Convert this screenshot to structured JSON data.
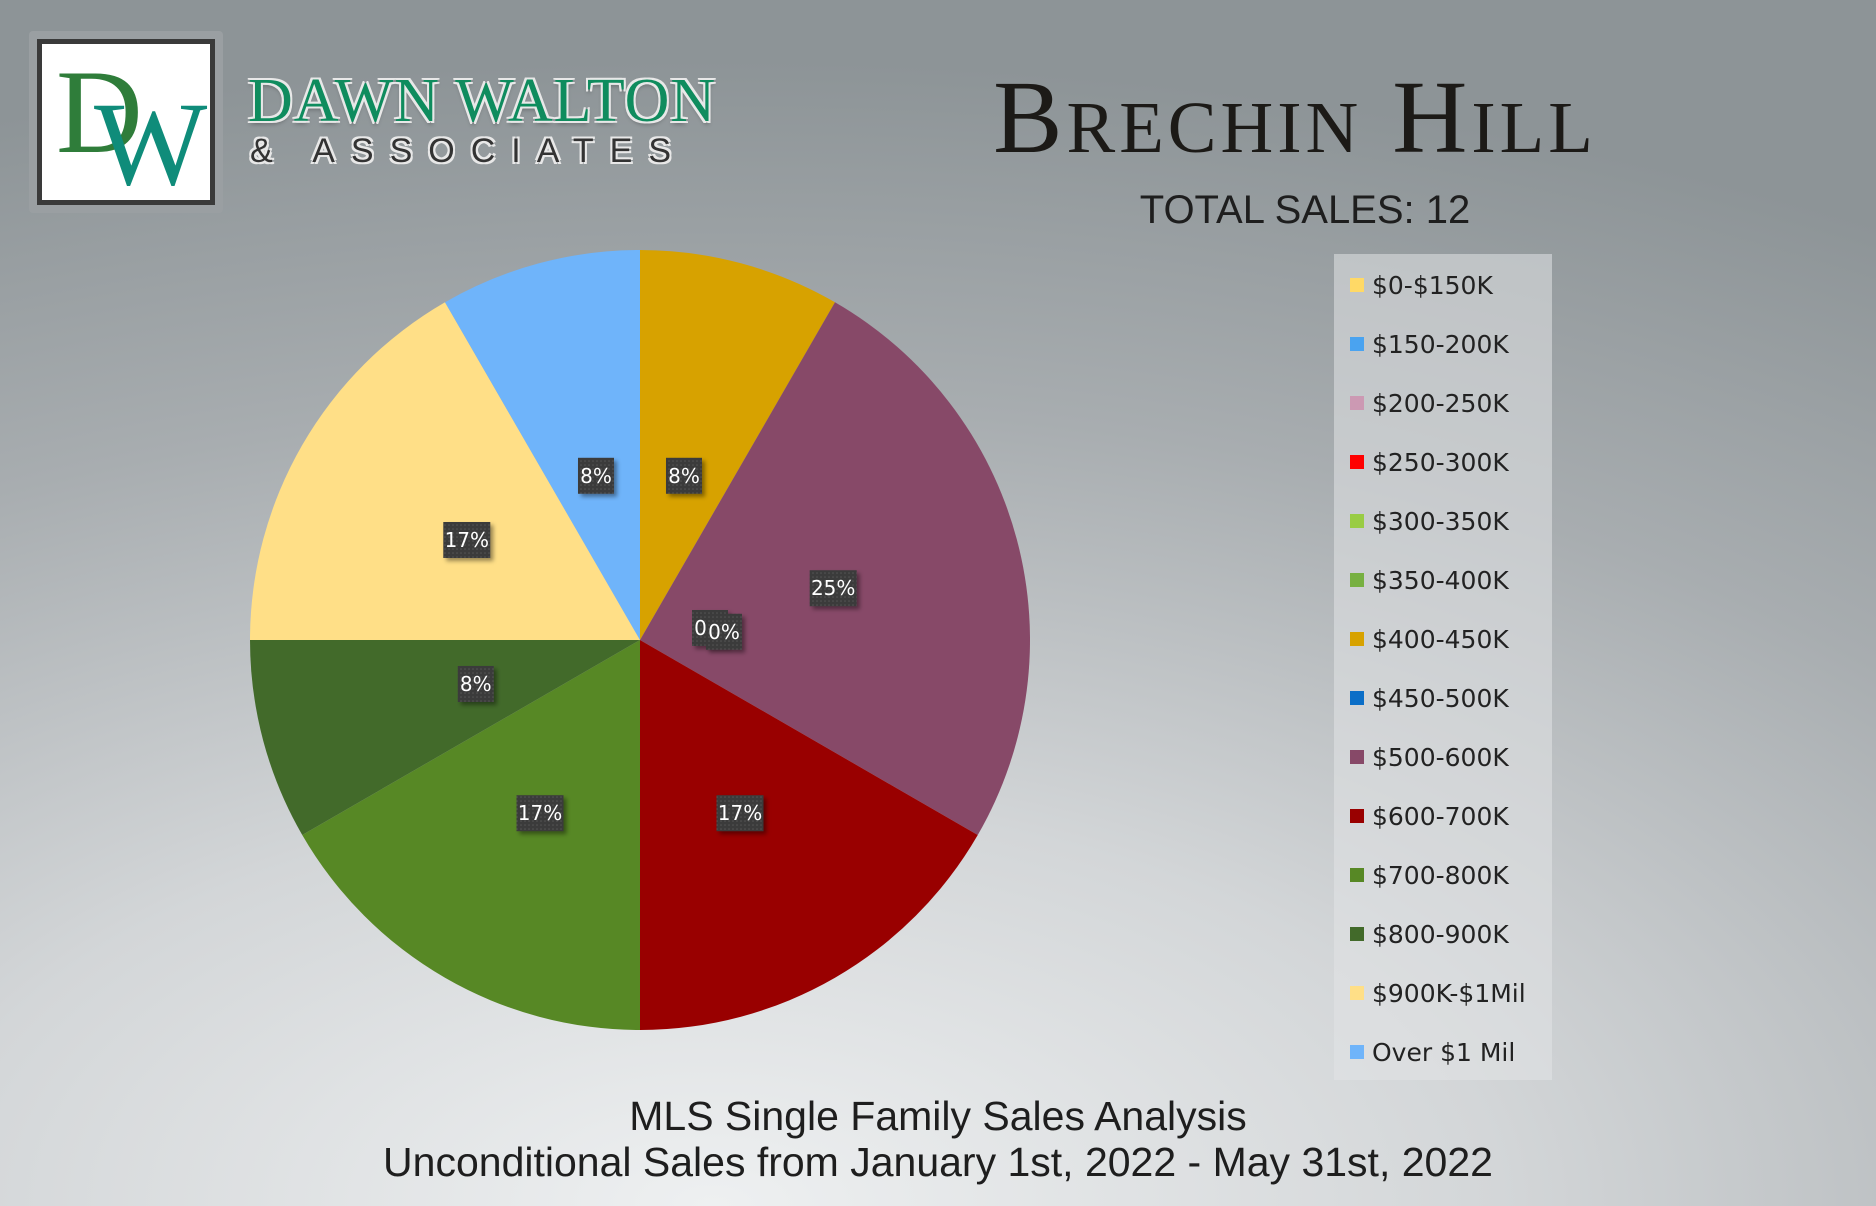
{
  "brand": {
    "monogram": "DW",
    "name": "DAWN WALTON",
    "tagline": "& ASSOCIATES"
  },
  "footer": {
    "line1": "MLS Single Family Sales Analysis",
    "line2": "Unconditional Sales from January 1st, 2022 - May 31st, 2022"
  },
  "chart_data": {
    "type": "pie",
    "title": "Brechin Hill",
    "subtitle": "TOTAL SALES: 12",
    "legend_position": "right",
    "categories": [
      "$0-$150K",
      "$150-200K",
      "$200-250K",
      "$250-300K",
      "$300-350K",
      "$350-400K",
      "$400-450K",
      "$450-500K",
      "$500-600K",
      "$600-700K",
      "$700-800K",
      "$800-900K",
      "$900K-$1Mil",
      "Over $1 Mil"
    ],
    "values": [
      0,
      0,
      0,
      0,
      0,
      0,
      1,
      0,
      3,
      2,
      2,
      1,
      2,
      1
    ],
    "colors": [
      "#ffd966",
      "#4aa3f0",
      "#cc99b3",
      "#ff0000",
      "#99cc44",
      "#77b041",
      "#d7a200",
      "#0b6ec7",
      "#874968",
      "#990000",
      "#578825",
      "#426a2a",
      "#ffdf87",
      "#6fb4fa"
    ],
    "data_labels": [
      {
        "category": "$0-$150K",
        "label": "0%"
      },
      {
        "category": "$400-450K",
        "label": "8%"
      },
      {
        "category": "$450-500K",
        "label": "0%"
      },
      {
        "category": "$500-600K",
        "label": "25%"
      },
      {
        "category": "$600-700K",
        "label": "17%"
      },
      {
        "category": "$700-800K",
        "label": "17%"
      },
      {
        "category": "$800-900K",
        "label": "8%"
      },
      {
        "category": "$900K-$1Mil",
        "label": "17%"
      },
      {
        "category": "Over $1 Mil",
        "label": "8%"
      }
    ]
  }
}
